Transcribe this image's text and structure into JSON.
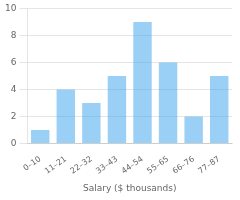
{
  "chart_data": {
    "type": "bar",
    "categories": [
      "0–10",
      "11–21",
      "22–32",
      "33–43",
      "44–54",
      "55–65",
      "66–76",
      "77–87"
    ],
    "values": [
      1,
      4,
      3,
      5,
      9,
      6,
      2,
      5
    ],
    "xlabel": "Salary ($ thousands)",
    "ylim": [
      0,
      10
    ],
    "yticks": [
      0,
      2,
      4,
      6,
      8,
      10
    ],
    "grid": true
  }
}
